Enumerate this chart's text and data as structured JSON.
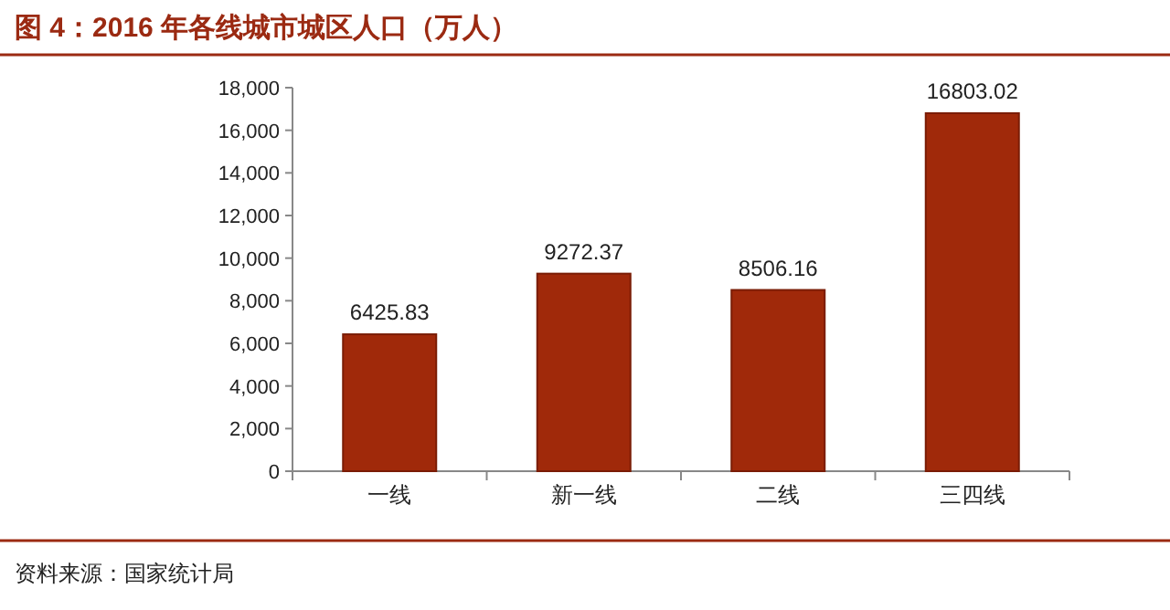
{
  "chart_data": {
    "type": "bar",
    "title": "图 4：2016 年各线城市城区人口（万人）",
    "categories": [
      "一线",
      "新一线",
      "二线",
      "三四线"
    ],
    "values": [
      6425.83,
      9272.37,
      8506.16,
      16803.02
    ],
    "color": "#a0290a",
    "ylim": [
      0,
      18000
    ],
    "yticks": [
      0,
      {
        "value": 2000,
        "label": "2,000"
      },
      {
        "value": 4000,
        "label": "4,000"
      },
      {
        "value": 6000,
        "label": "6,000"
      },
      {
        "value": 8000,
        "label": "8,000"
      },
      {
        "value": 10000,
        "label": "10,000"
      },
      {
        "value": 12000,
        "label": "12,000"
      },
      {
        "value": 14000,
        "label": "14,000"
      },
      {
        "value": 16000,
        "label": "16,000"
      },
      {
        "value": 18000,
        "label": "18,000"
      }
    ],
    "data_labels": true,
    "grid": false,
    "annotations": [
      "资料来源：国家统计局"
    ]
  }
}
